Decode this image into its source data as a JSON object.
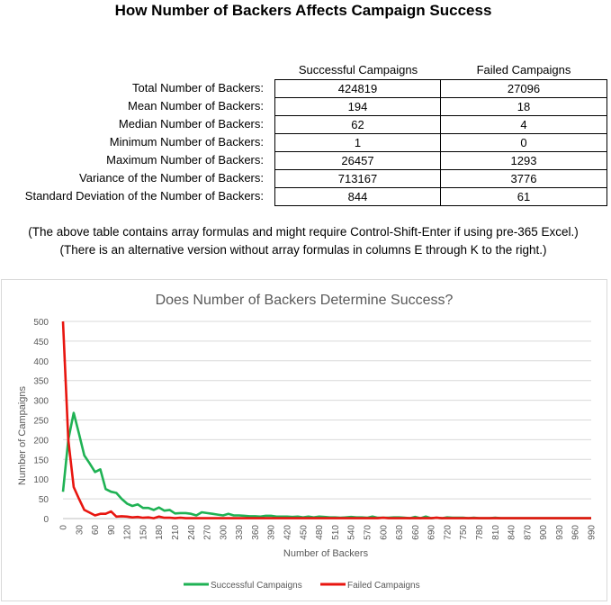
{
  "title": "How Number of Backers Affects Campaign Success",
  "table": {
    "headers": [
      "Successful Campaigns",
      "Failed Campaigns"
    ],
    "rows": [
      {
        "label": "Total Number of Backers:",
        "successful": "424819",
        "failed": "27096"
      },
      {
        "label": "Mean Number of Backers:",
        "successful": "194",
        "failed": "18"
      },
      {
        "label": "Median Number of Backers:",
        "successful": "62",
        "failed": "4"
      },
      {
        "label": "Minimum Number of Backers:",
        "successful": "1",
        "failed": "0"
      },
      {
        "label": "Maximum Number of Backers:",
        "successful": "26457",
        "failed": "1293"
      },
      {
        "label": "Variance of the Number of Backers:",
        "successful": "713167",
        "failed": "3776"
      },
      {
        "label": "Standard Deviation of the Number of Backers:",
        "successful": "844",
        "failed": "61"
      }
    ]
  },
  "notes": [
    "(The above table contains array formulas and might require Control-Shift-Enter if using pre-365 Excel.)",
    "(There is an alternative version without array formulas in columns E through K to the right.)"
  ],
  "chart_data": {
    "type": "line",
    "title": "Does Number of Backers Determine Success?",
    "xlabel": "Number of Backers",
    "ylabel": "Number of Campaigns",
    "ylim": [
      0,
      500
    ],
    "yticks": [
      0,
      50,
      100,
      150,
      200,
      250,
      300,
      350,
      400,
      450,
      500
    ],
    "x": [
      0,
      10,
      20,
      30,
      40,
      50,
      60,
      70,
      80,
      90,
      100,
      110,
      120,
      130,
      140,
      150,
      160,
      170,
      180,
      190,
      200,
      210,
      220,
      230,
      240,
      250,
      260,
      270,
      280,
      290,
      300,
      310,
      320,
      330,
      340,
      350,
      360,
      370,
      380,
      390,
      400,
      410,
      420,
      430,
      440,
      450,
      460,
      470,
      480,
      490,
      500,
      510,
      520,
      530,
      540,
      550,
      560,
      570,
      580,
      590,
      600,
      610,
      620,
      630,
      640,
      650,
      660,
      670,
      680,
      690,
      700,
      710,
      720,
      730,
      740,
      750,
      760,
      770,
      780,
      790,
      800,
      810,
      820,
      830,
      840,
      850,
      860,
      870,
      880,
      890,
      900,
      910,
      920,
      930,
      940,
      950,
      960,
      970,
      980,
      990
    ],
    "series": [
      {
        "name": "Successful Campaigns",
        "color": "#1fb254",
        "values": [
          68,
          200,
          268,
          215,
          160,
          140,
          118,
          125,
          75,
          68,
          65,
          50,
          38,
          32,
          36,
          27,
          27,
          22,
          28,
          20,
          22,
          13,
          14,
          14,
          12,
          8,
          16,
          14,
          12,
          10,
          8,
          12,
          8,
          8,
          7,
          6,
          6,
          5,
          7,
          7,
          5,
          5,
          5,
          4,
          5,
          3,
          5,
          3,
          5,
          4,
          3,
          3,
          2,
          3,
          4,
          3,
          3,
          2,
          5,
          2,
          2,
          2,
          3,
          3,
          2,
          1,
          4,
          1,
          5,
          1,
          2,
          1,
          3,
          2,
          2,
          2,
          1,
          2,
          1,
          1,
          1,
          2,
          1,
          1,
          1,
          1,
          1,
          1,
          1,
          1,
          1,
          1,
          1,
          1,
          1,
          1,
          1,
          1,
          1,
          1
        ]
      },
      {
        "name": "Failed Campaigns",
        "color": "#e8150f",
        "values": [
          500,
          200,
          80,
          50,
          22,
          15,
          8,
          12,
          12,
          18,
          5,
          6,
          5,
          3,
          4,
          2,
          3,
          1,
          5,
          2,
          2,
          1,
          2,
          1,
          1,
          1,
          1,
          1,
          1,
          1,
          1,
          1,
          1,
          1,
          1,
          1,
          1,
          1,
          1,
          1,
          1,
          1,
          1,
          1,
          1,
          1,
          1,
          1,
          1,
          1,
          1,
          1,
          1,
          1,
          1,
          1,
          1,
          1,
          1,
          1,
          2,
          1,
          1,
          1,
          1,
          1,
          1,
          1,
          1,
          1,
          2,
          1,
          1,
          1,
          1,
          1,
          1,
          1,
          1,
          1,
          1,
          1,
          1,
          1,
          1,
          1,
          1,
          1,
          1,
          1,
          1,
          1,
          1,
          1,
          1,
          1,
          1,
          1,
          1,
          1
        ]
      }
    ],
    "legend": "bottom"
  }
}
